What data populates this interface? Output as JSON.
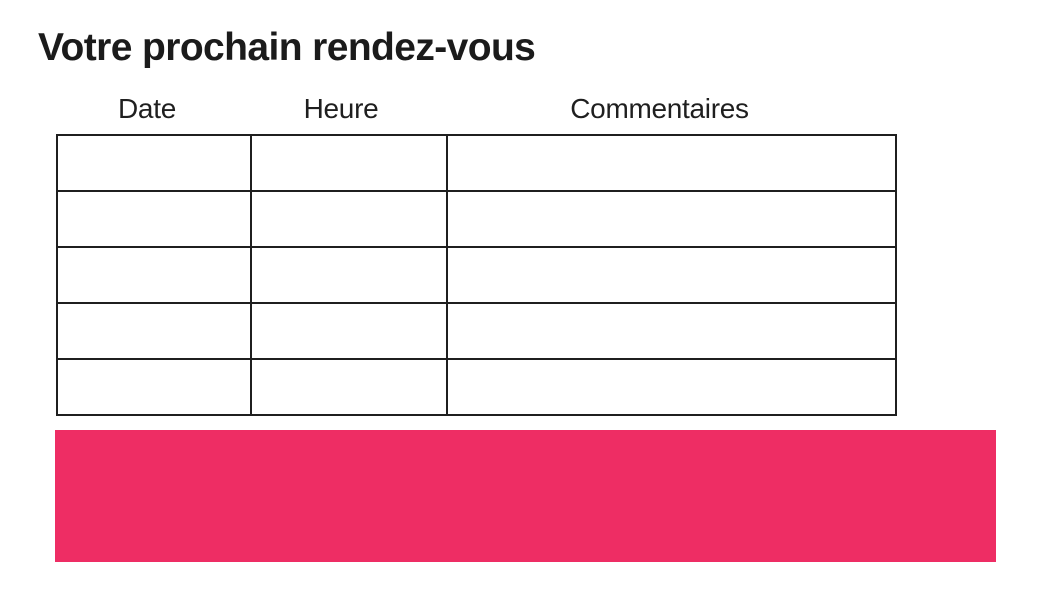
{
  "page": {
    "title": "Votre prochain rendez-vous",
    "background_color": "#ffffff"
  },
  "table": {
    "columns": [
      {
        "label": "Date"
      },
      {
        "label": "Heure"
      },
      {
        "label": "Commentaires"
      }
    ],
    "rows": [
      [
        "",
        "",
        ""
      ],
      [
        "",
        "",
        ""
      ],
      [
        "",
        "",
        ""
      ],
      [
        "",
        "",
        ""
      ],
      [
        "",
        "",
        ""
      ]
    ],
    "border_color": "#1f1f1f"
  },
  "footer_block": {
    "color": "#ee2d64",
    "style": "background-color:#ee2d64"
  },
  "colors": {
    "text": "#1b1b1b",
    "accent_pink": "#ee2d64",
    "table_border": "#1f1f1f"
  }
}
